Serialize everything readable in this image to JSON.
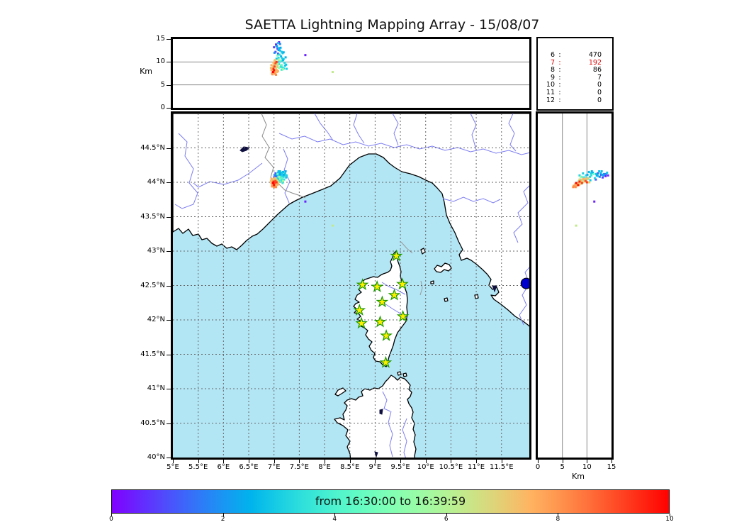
{
  "title": "SAETTA Lightning Mapping Array - 15/08/07",
  "colors": {
    "sea": "#b3e6f5",
    "land": "#ffffff",
    "coast": "#000000",
    "river": "#7d7df2",
    "country_border": "#8a8a8a",
    "grid": "#666666",
    "lake": "#101040",
    "station_fill": "#ffee00",
    "station_edge": "#1a9900",
    "balloon_marker": "#0000cc",
    "highlight_red": "#dd0000"
  },
  "chart_data": {
    "type": "scatter",
    "title": "SAETTA Lightning Mapping Array - 15/08/07",
    "colormap": "rainbow",
    "panels": {
      "altitude_vs_longitude": {
        "ylabel": "Km",
        "ylim": [
          0,
          15
        ],
        "ytick_values": [
          0,
          5,
          10,
          15
        ],
        "ytick_labels": [
          "0",
          "5",
          "10",
          "15"
        ],
        "grid_at": [
          5,
          10
        ]
      },
      "map": {
        "xlim": [
          5,
          12.05
        ],
        "ylim": [
          40,
          45
        ],
        "lon_tick_values": [
          5,
          5.5,
          6,
          6.5,
          7,
          7.5,
          8,
          8.5,
          9,
          9.5,
          10,
          10.5,
          11,
          11.5
        ],
        "lon_tick_labels": [
          "5°E",
          "5.5°E",
          "6°E",
          "6.5°E",
          "7°E",
          "7.5°E",
          "8°E",
          "8.5°E",
          "9°E",
          "9.5°E",
          "10°E",
          "10.5°E",
          "11°E",
          "11.5°E"
        ],
        "lat_tick_values": [
          44.5,
          44,
          43.5,
          43,
          42.5,
          42,
          41.5,
          41,
          40.5,
          40
        ],
        "lat_tick_labels": [
          "44.5°N",
          "44°N",
          "43.5°N",
          "43°N",
          "42.5°N",
          "42°N",
          "41.5°N",
          "41°N",
          "40.5°N",
          "40°N"
        ],
        "grid": "dashed"
      },
      "altitude_vs_latitude": {
        "xlabel": "Km",
        "xlim": [
          0,
          15
        ],
        "xtick_values": [
          0,
          5,
          10,
          15
        ],
        "xtick_labels": [
          "0",
          "5",
          "10",
          "15"
        ],
        "grid_at": [
          5,
          10
        ]
      }
    },
    "station_count_table": {
      "rows": [
        [
          6,
          470
        ],
        [
          7,
          192
        ],
        [
          8,
          86
        ],
        [
          9,
          7
        ],
        [
          10,
          0
        ],
        [
          11,
          0
        ],
        [
          12,
          0
        ]
      ],
      "highlighted_station_count": 7
    },
    "colorbar": {
      "label": "from 16:30:00 to 16:39:59",
      "tick_values": [
        0,
        2,
        4,
        6,
        8,
        10
      ],
      "tick_labels": [
        "0",
        "2",
        "4",
        "6",
        "8",
        "10"
      ],
      "range": [
        0,
        10
      ]
    },
    "stations_lonlat": [
      [
        9.42,
        42.93
      ],
      [
        8.75,
        42.51
      ],
      [
        9.04,
        42.48
      ],
      [
        9.54,
        42.52
      ],
      [
        9.38,
        42.36
      ],
      [
        9.14,
        42.26
      ],
      [
        8.69,
        42.14
      ],
      [
        9.55,
        42.05
      ],
      [
        8.73,
        41.95
      ],
      [
        9.1,
        41.97
      ],
      [
        9.22,
        41.77
      ],
      [
        9.21,
        41.38
      ]
    ],
    "balloon_marker_lonlat": [
      11.99,
      42.53
    ],
    "sources_lon_lat_altkm_time": [
      [
        7.04,
        44.09,
        13.8,
        0.3
      ],
      [
        7.07,
        44.11,
        12.9,
        0.5
      ],
      [
        7.0,
        44.07,
        13.2,
        0.8
      ],
      [
        7.1,
        44.1,
        14.3,
        0.6
      ],
      [
        7.03,
        44.13,
        12.2,
        1.0
      ],
      [
        7.62,
        43.72,
        11.5,
        0.4
      ],
      [
        7.08,
        44.04,
        11.8,
        1.1
      ],
      [
        7.05,
        44.12,
        13.5,
        1.6
      ],
      [
        7.09,
        44.08,
        12.6,
        1.8
      ],
      [
        7.12,
        44.12,
        13.9,
        1.7
      ],
      [
        7.01,
        44.1,
        12.0,
        1.9
      ],
      [
        7.06,
        44.1,
        13.4,
        2.4
      ],
      [
        7.1,
        44.13,
        12.8,
        2.6
      ],
      [
        7.13,
        44.11,
        13.1,
        2.3
      ],
      [
        7.08,
        44.14,
        14.1,
        2.8
      ],
      [
        7.15,
        44.09,
        12.2,
        3.0
      ],
      [
        7.11,
        44.06,
        11.6,
        3.2
      ],
      [
        7.17,
        44.12,
        11.9,
        2.9
      ],
      [
        7.09,
        44.1,
        10.9,
        3.4
      ],
      [
        7.14,
        44.14,
        11.2,
        2.5
      ],
      [
        7.19,
        44.08,
        10.6,
        3.1
      ],
      [
        7.12,
        44.16,
        12.5,
        2.7
      ],
      [
        7.16,
        44.05,
        10.2,
        3.5
      ],
      [
        7.21,
        44.1,
        9.8,
        3.3
      ],
      [
        7.1,
        44.02,
        9.5,
        3.6
      ],
      [
        7.18,
        44.15,
        10.4,
        2.6
      ],
      [
        7.22,
        44.13,
        9.2,
        3.0
      ],
      [
        7.13,
        44.08,
        8.9,
        3.7
      ],
      [
        7.07,
        44.06,
        9.9,
        3.2
      ],
      [
        7.2,
        44.04,
        8.6,
        3.4
      ],
      [
        7.24,
        44.07,
        9.4,
        2.8
      ],
      [
        7.15,
        44.01,
        8.3,
        3.8
      ],
      [
        7.11,
        44.11,
        10.1,
        2.2
      ],
      [
        7.23,
        44.16,
        11.0,
        2.5
      ],
      [
        7.17,
        43.99,
        8.8,
        3.6
      ],
      [
        7.05,
        44.03,
        10.7,
        2.9
      ],
      [
        7.19,
        44.11,
        12.1,
        2.4
      ],
      [
        7.25,
        44.1,
        8.5,
        3.1
      ],
      [
        7.14,
        44.04,
        9.1,
        3.3
      ],
      [
        7.09,
        44.16,
        13.0,
        2.7
      ],
      [
        7.16,
        44.13,
        10.8,
        3.0
      ],
      [
        7.08,
        44.02,
        9.6,
        4.5
      ],
      [
        7.12,
        44.05,
        10.3,
        4.8
      ],
      [
        7.05,
        44.0,
        9.0,
        5.2
      ],
      [
        7.1,
        44.08,
        8.7,
        5.5
      ],
      [
        7.15,
        44.06,
        9.3,
        4.3
      ],
      [
        7.03,
        44.05,
        10.0,
        5.0
      ],
      [
        7.18,
        44.02,
        8.4,
        5.6
      ],
      [
        7.07,
        44.12,
        11.4,
        4.6
      ],
      [
        7.02,
        44.01,
        9.7,
        6.2
      ],
      [
        7.06,
        43.98,
        8.9,
        6.0
      ],
      [
        8.16,
        43.37,
        7.8,
        6.3
      ],
      [
        7.09,
        44.0,
        10.5,
        6.1
      ],
      [
        7.0,
        44.0,
        9.2,
        7.0
      ],
      [
        6.98,
        43.98,
        8.8,
        7.2
      ],
      [
        7.02,
        44.02,
        9.5,
        6.9
      ],
      [
        6.96,
        43.96,
        8.4,
        7.4
      ],
      [
        7.04,
        43.99,
        8.1,
        7.1
      ],
      [
        6.99,
        44.03,
        9.8,
        7.3
      ],
      [
        7.01,
        43.95,
        7.9,
        7.6
      ],
      [
        6.97,
        44.01,
        8.6,
        7.0
      ],
      [
        7.03,
        43.97,
        7.6,
        7.5
      ],
      [
        7.05,
        44.01,
        8.9,
        6.8
      ],
      [
        6.95,
        43.99,
        8.2,
        7.7
      ],
      [
        7.0,
        44.05,
        9.4,
        7.2
      ],
      [
        7.02,
        43.94,
        7.4,
        7.8
      ],
      [
        6.98,
        44.04,
        9.0,
        7.1
      ],
      [
        7.06,
        43.96,
        7.8,
        7.4
      ],
      [
        7.04,
        44.04,
        8.5,
        6.9
      ],
      [
        6.96,
        43.94,
        7.5,
        7.9
      ],
      [
        7.01,
        44.06,
        10.2,
        7.3
      ],
      [
        6.99,
        43.97,
        8.0,
        7.6
      ],
      [
        7.07,
        44.0,
        9.1,
        7.0
      ],
      [
        7.03,
        44.05,
        9.9,
        7.2
      ],
      [
        6.97,
        43.95,
        7.3,
        8.0
      ],
      [
        7.05,
        43.98,
        8.3,
        7.5
      ],
      [
        7.0,
        43.93,
        7.7,
        8.1
      ],
      [
        7.06,
        44.03,
        9.6,
        6.8
      ],
      [
        6.94,
        44.02,
        8.7,
        7.4
      ],
      [
        7.08,
        43.97,
        8.0,
        7.7
      ],
      [
        7.02,
        44.0,
        10.4,
        7.1
      ],
      [
        6.95,
        44.05,
        9.3,
        7.6
      ],
      [
        7.04,
        43.93,
        7.2,
        8.2
      ],
      [
        7.01,
        43.99,
        9.0,
        9.2
      ],
      [
        6.99,
        44.01,
        8.5,
        9.5
      ],
      [
        7.03,
        44.02,
        9.7,
        9.0
      ],
      [
        7.0,
        43.96,
        8.2,
        9.8
      ],
      [
        7.05,
        44.0,
        10.0,
        9.3
      ],
      [
        6.98,
        43.99,
        7.8,
        10.0
      ]
    ]
  }
}
